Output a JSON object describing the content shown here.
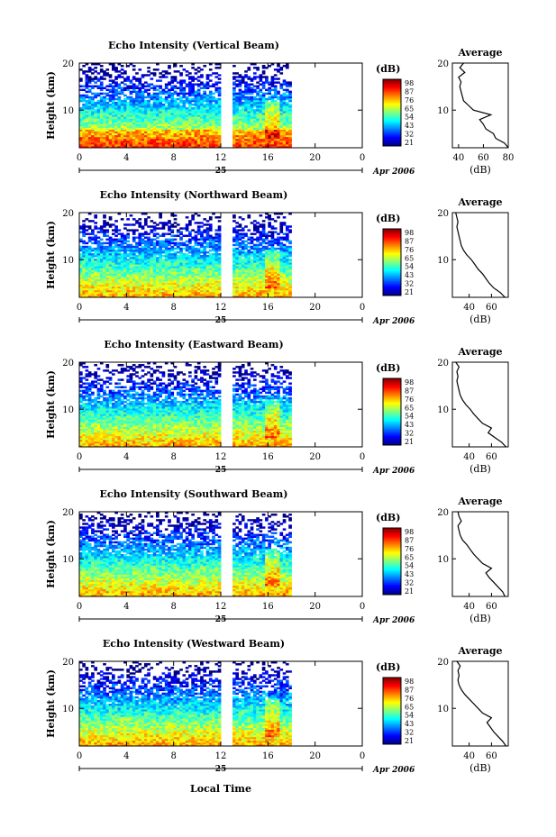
{
  "figure": {
    "xlabel": "Local Time",
    "date_day": "25",
    "date_label": "Apr 2006",
    "colorbar_label": "(dB)",
    "colorbar_ticks": [
      "98",
      "87",
      "76",
      "65",
      "54",
      "43",
      "32",
      "21"
    ],
    "colorbar_colors": [
      "#000080",
      "#0000ff",
      "#0080ff",
      "#00ffff",
      "#80ff80",
      "#ffff00",
      "#ff8000",
      "#ff0000",
      "#800000"
    ]
  },
  "chart_data": [
    {
      "type": "heatmap",
      "title": "Echo Intensity (Vertical Beam)",
      "ylabel": "Height (km)",
      "xticks": [
        "0",
        "4",
        "8",
        "12",
        "16",
        "20",
        "0"
      ],
      "xlim": [
        0,
        24
      ],
      "ylim": [
        2,
        20
      ],
      "yticks": [
        "20",
        "10"
      ],
      "data_gap_hours": [
        12.0,
        13.0
      ],
      "data_end_hours": 18,
      "profile": {
        "title": "Average",
        "xlabel": "(dB)",
        "xlim": [
          35,
          80
        ],
        "xticks": [
          "40",
          "60",
          "80"
        ],
        "yticks": [
          "20",
          "10"
        ],
        "height_km": [
          2,
          3,
          4,
          5,
          6,
          7,
          8,
          9,
          10,
          11,
          12,
          13,
          14,
          15,
          16,
          17,
          18,
          19,
          20
        ],
        "avg_db": [
          80,
          77,
          70,
          68,
          62,
          60,
          57,
          66,
          52,
          48,
          44,
          43,
          42,
          41,
          42,
          40,
          45,
          41,
          44
        ]
      }
    },
    {
      "type": "heatmap",
      "title": "Echo Intensity (Northward Beam)",
      "ylabel": "Height (km)",
      "xticks": [
        "0",
        "4",
        "8",
        "12",
        "16",
        "20",
        "0"
      ],
      "xlim": [
        0,
        24
      ],
      "ylim": [
        2,
        20
      ],
      "yticks": [
        "20",
        "10"
      ],
      "data_gap_hours": [
        12.0,
        13.0
      ],
      "data_end_hours": 18,
      "profile": {
        "title": "Average",
        "xlabel": "(dB)",
        "xlim": [
          25,
          75
        ],
        "xticks": [
          "40",
          "60"
        ],
        "yticks": [
          "20",
          "10"
        ],
        "height_km": [
          2,
          3,
          4,
          5,
          6,
          7,
          8,
          9,
          10,
          11,
          12,
          13,
          14,
          15,
          16,
          17,
          18,
          19,
          20
        ],
        "avg_db": [
          72,
          68,
          62,
          58,
          55,
          52,
          48,
          45,
          42,
          38,
          35,
          33,
          32,
          31,
          30,
          29,
          30,
          29,
          28
        ]
      }
    },
    {
      "type": "heatmap",
      "title": "Echo Intensity (Eastward Beam)",
      "ylabel": "Height (km)",
      "xticks": [
        "0",
        "4",
        "8",
        "12",
        "16",
        "20",
        "0"
      ],
      "xlim": [
        0,
        24
      ],
      "ylim": [
        2,
        20
      ],
      "yticks": [
        "20",
        "10"
      ],
      "data_gap_hours": [
        12.0,
        13.0
      ],
      "data_end_hours": 18,
      "profile": {
        "title": "Average",
        "xlabel": "(dB)",
        "xlim": [
          25,
          75
        ],
        "xticks": [
          "40",
          "60"
        ],
        "yticks": [
          "20",
          "10"
        ],
        "height_km": [
          2,
          3,
          4,
          5,
          6,
          7,
          8,
          9,
          10,
          11,
          12,
          13,
          14,
          15,
          16,
          17,
          18,
          19,
          20
        ],
        "avg_db": [
          73,
          69,
          63,
          57,
          60,
          52,
          48,
          44,
          41,
          37,
          34,
          32,
          31,
          30,
          29,
          30,
          29,
          31,
          28
        ]
      }
    },
    {
      "type": "heatmap",
      "title": "Echo Intensity (Southward Beam)",
      "ylabel": "Height (km)",
      "xticks": [
        "0",
        "4",
        "8",
        "12",
        "16",
        "20",
        "0"
      ],
      "xlim": [
        0,
        24
      ],
      "ylim": [
        2,
        20
      ],
      "yticks": [
        "20",
        "10"
      ],
      "data_gap_hours": [
        12.0,
        13.0
      ],
      "data_end_hours": 18,
      "profile": {
        "title": "Average",
        "xlabel": "(dB)",
        "xlim": [
          25,
          75
        ],
        "xticks": [
          "40",
          "60"
        ],
        "yticks": [
          "20",
          "10"
        ],
        "height_km": [
          2,
          3,
          4,
          5,
          6,
          7,
          8,
          9,
          10,
          11,
          12,
          13,
          14,
          15,
          16,
          17,
          18,
          19,
          20
        ],
        "avg_db": [
          72,
          70,
          66,
          62,
          58,
          55,
          60,
          52,
          48,
          44,
          41,
          38,
          34,
          32,
          31,
          30,
          33,
          31,
          30
        ]
      }
    },
    {
      "type": "heatmap",
      "title": "Echo Intensity (Westward Beam)",
      "ylabel": "Height (km)",
      "xticks": [
        "0",
        "4",
        "8",
        "12",
        "16",
        "20",
        "0"
      ],
      "xlim": [
        0,
        24
      ],
      "ylim": [
        2,
        20
      ],
      "yticks": [
        "20",
        "10"
      ],
      "data_gap_hours": [
        12.0,
        13.0
      ],
      "data_end_hours": 18,
      "profile": {
        "title": "Average",
        "xlabel": "(dB)",
        "xlim": [
          25,
          75
        ],
        "xticks": [
          "40",
          "60"
        ],
        "yticks": [
          "20",
          "10"
        ],
        "height_km": [
          2,
          3,
          4,
          5,
          6,
          7,
          8,
          9,
          10,
          11,
          12,
          13,
          14,
          15,
          16,
          17,
          18,
          19,
          20
        ],
        "avg_db": [
          73,
          70,
          66,
          62,
          59,
          56,
          60,
          52,
          48,
          44,
          40,
          36,
          33,
          31,
          30,
          31,
          30,
          32,
          29
        ]
      }
    }
  ]
}
